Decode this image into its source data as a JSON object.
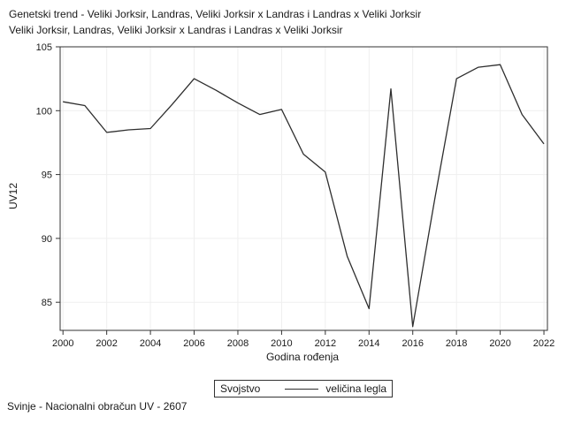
{
  "footer": "Svinje - Nacionalni obračun UV - 2607",
  "colors": {
    "line": "#2e2e2e",
    "grid": "#efefef",
    "frame": "#333333",
    "text": "#1a1a1a",
    "background": "#ffffff"
  },
  "chart_data": {
    "type": "line",
    "title": "Genetski trend - Veliki Jorksir, Landras, Veliki Jorksir x Landras i Landras x Veliki Jorksir",
    "subtitle": "Veliki Jorksir, Landras, Veliki Jorksir x Landras i Landras x Veliki Jorksir",
    "xlabel": "Godina rođenja",
    "ylabel": "UV12",
    "legend_title": "Svojstvo",
    "legend_position": "bottom-center",
    "grid": true,
    "x": [
      2000,
      2001,
      2002,
      2003,
      2004,
      2005,
      2006,
      2007,
      2008,
      2009,
      2010,
      2011,
      2012,
      2013,
      2014,
      2015,
      2016,
      2017,
      2018,
      2019,
      2020,
      2021,
      2022
    ],
    "series": [
      {
        "name": "veličina legla",
        "values": [
          100.7,
          100.4,
          98.3,
          98.5,
          98.6,
          100.5,
          102.5,
          101.6,
          100.6,
          99.7,
          100.1,
          96.6,
          95.2,
          88.6,
          84.5,
          101.7,
          83.1,
          93.0,
          102.5,
          103.4,
          103.6,
          99.7,
          97.4
        ]
      }
    ],
    "xticks": [
      2000,
      2002,
      2004,
      2006,
      2008,
      2010,
      2012,
      2014,
      2016,
      2018,
      2020,
      2022
    ],
    "yticks": [
      85,
      90,
      95,
      100,
      105
    ],
    "xlim": [
      1999.87,
      2022.16
    ],
    "ylim": [
      82.8,
      105
    ]
  }
}
